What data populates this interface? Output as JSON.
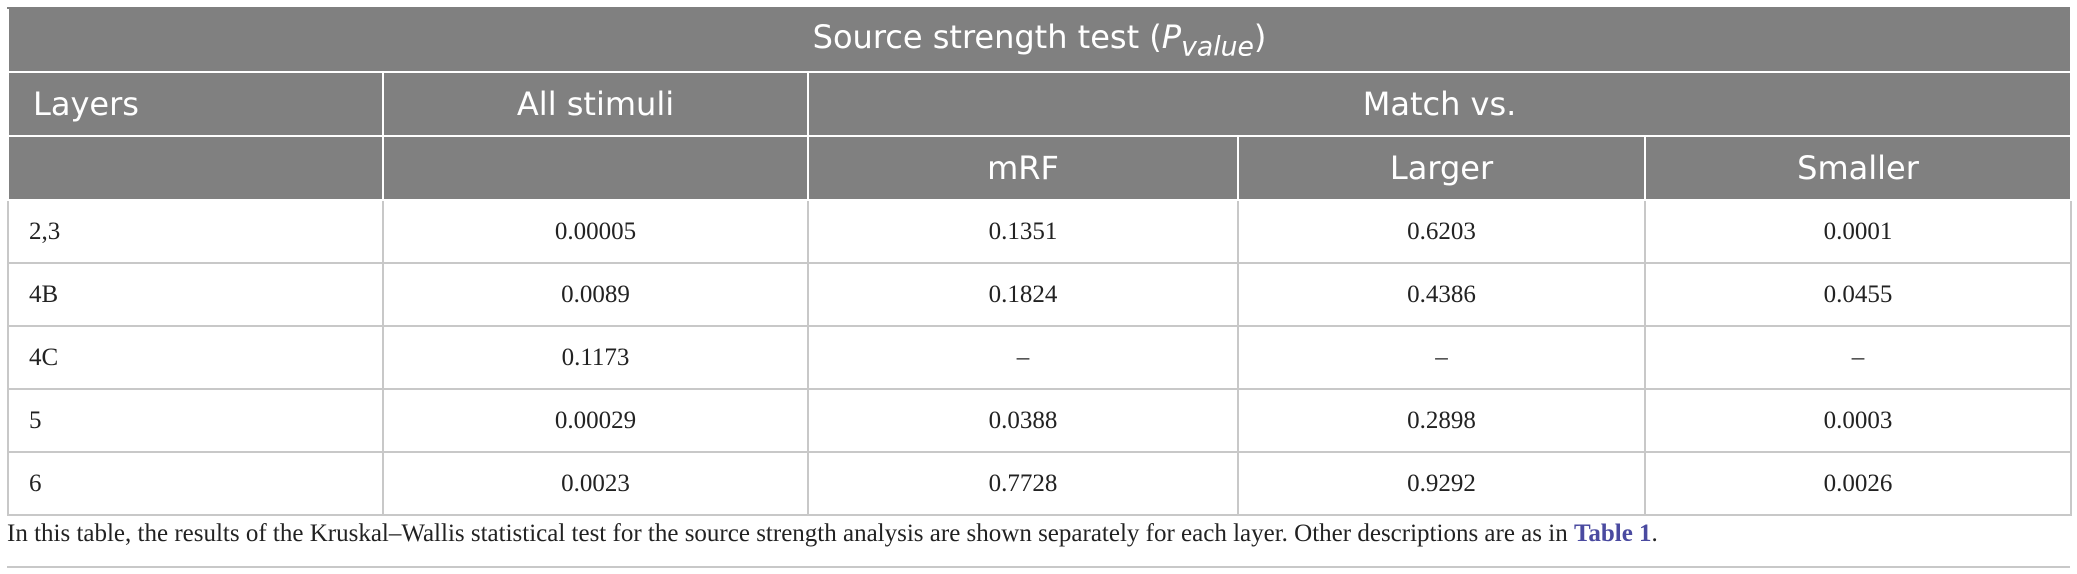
{
  "title": {
    "text": "Source strength test (",
    "symbol": "P",
    "subscript": "value",
    "close": ")"
  },
  "header": {
    "layers": "Layers",
    "all": "All stimuli",
    "match": "Match vs.",
    "columns": [
      "mRF",
      "Larger",
      "Smaller"
    ]
  },
  "table": {
    "rows": [
      [
        "2,3",
        "0.00005",
        "0.1351",
        "0.6203",
        "0.0001"
      ],
      [
        "4B",
        "0.0089",
        "0.1824",
        "0.4386",
        "0.0455"
      ],
      [
        "4C",
        "0.1173",
        "–",
        "–",
        "–"
      ],
      [
        "5",
        "0.00029",
        "0.0388",
        "0.2898",
        "0.0003"
      ],
      [
        "6",
        "0.0023",
        "0.7728",
        "0.9292",
        "0.0026"
      ]
    ]
  },
  "footnote": {
    "text": "In this table, the results of the Kruskal–Wallis statistical test for the source strength analysis are shown separately for each layer. Other descriptions are as in ",
    "link": "Table 1",
    "end": "."
  }
}
